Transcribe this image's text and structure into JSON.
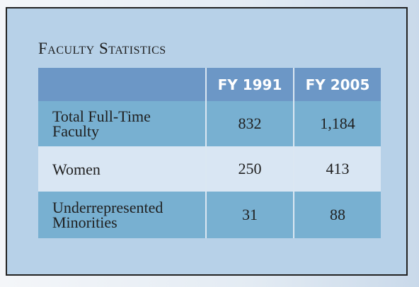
{
  "title": "Faculty Statistics",
  "table": {
    "header": [
      "FY 1991",
      "FY 2005"
    ],
    "rows": [
      [
        "Total Full-Time Faculty",
        "832",
        "1,184"
      ],
      [
        "Women",
        "250",
        "413"
      ],
      [
        "Underrepresented Minorities",
        "31",
        "88"
      ]
    ]
  }
}
